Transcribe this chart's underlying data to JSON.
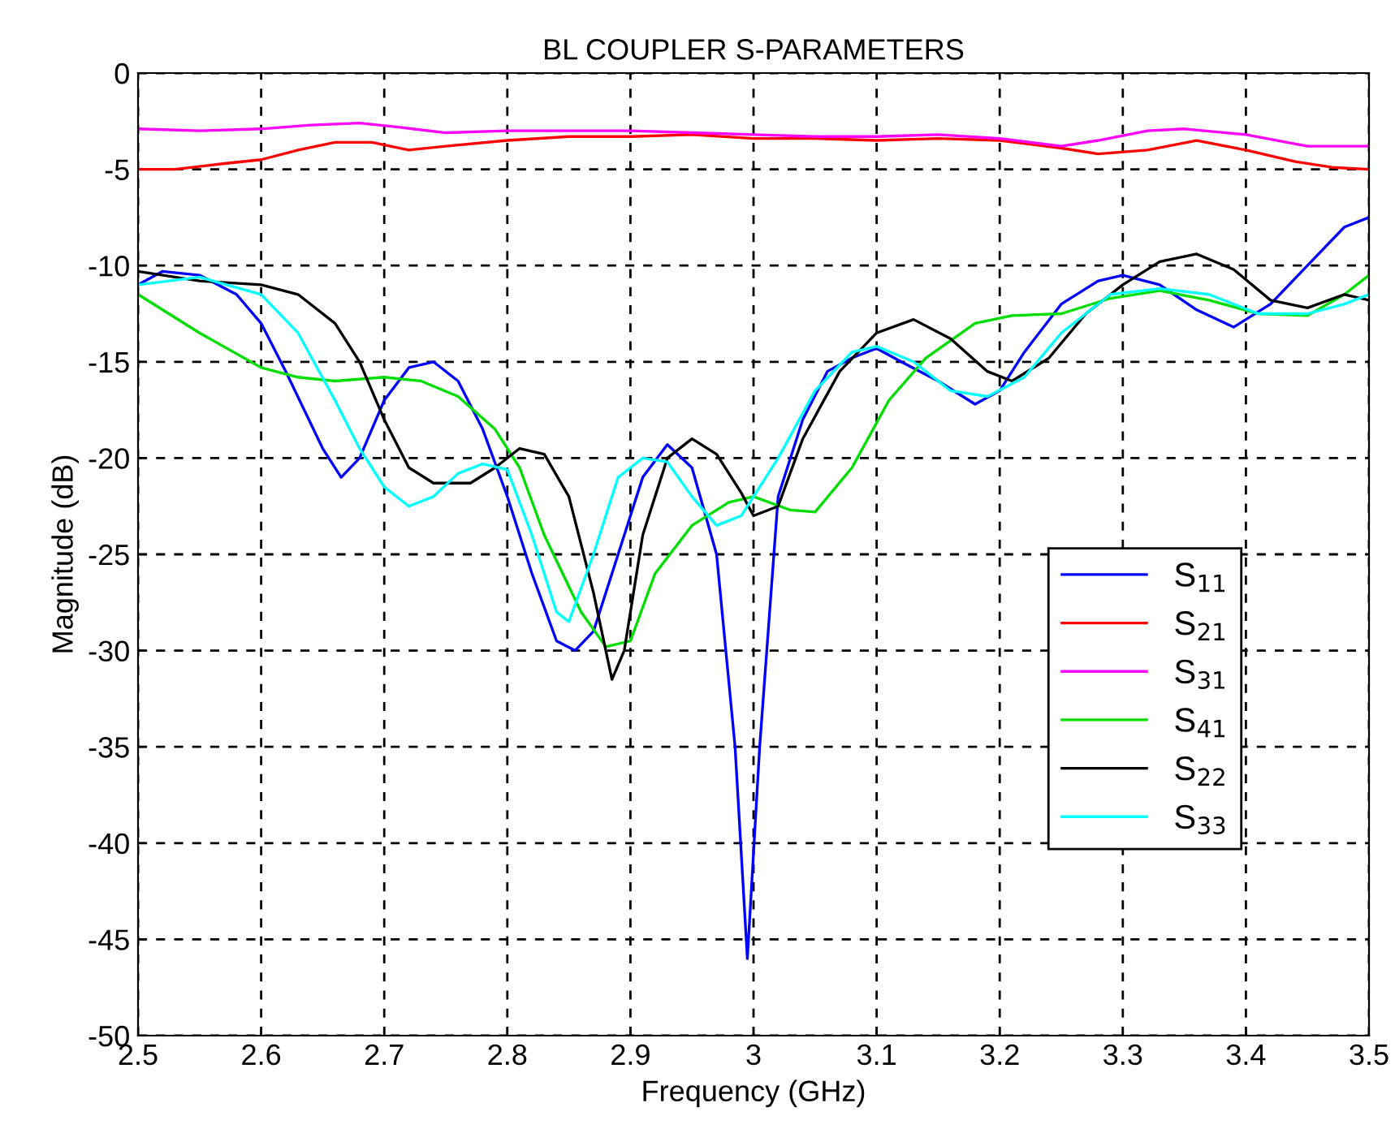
{
  "chart_data": {
    "type": "line",
    "title": "BL COUPLER S-PARAMETERS",
    "xlabel": "Frequency (GHz)",
    "ylabel": "Magnitude (dB)",
    "xlim": [
      2.5,
      3.5
    ],
    "xticks": [
      2.5,
      2.6,
      2.7,
      2.8,
      2.9,
      3,
      3.1,
      3.2,
      3.3,
      3.4,
      3.5
    ],
    "ylim": [
      -50,
      0
    ],
    "yticks": [
      -50,
      -45,
      -40,
      -35,
      -30,
      -25,
      -20,
      -15,
      -10,
      -5,
      0
    ],
    "grid": true,
    "legend": "right",
    "line_style": "solid",
    "marker": "none",
    "series": [
      {
        "name": "S$_{11}$",
        "color": "#0000ff",
        "x": [
          2.5,
          2.52,
          2.55,
          2.58,
          2.6,
          2.62,
          2.65,
          2.665,
          2.68,
          2.7,
          2.72,
          2.74,
          2.76,
          2.78,
          2.8,
          2.82,
          2.84,
          2.855,
          2.87,
          2.89,
          2.91,
          2.93,
          2.95,
          2.97,
          2.985,
          2.995,
          3.005,
          3.02,
          3.04,
          3.06,
          3.08,
          3.1,
          3.12,
          3.15,
          3.18,
          3.2,
          3.22,
          3.25,
          3.28,
          3.3,
          3.33,
          3.36,
          3.39,
          3.42,
          3.45,
          3.48,
          3.5
        ],
        "values": [
          -11,
          -10.3,
          -10.5,
          -11.5,
          -13,
          -15.5,
          -19.5,
          -21,
          -20,
          -17,
          -15.3,
          -15,
          -16,
          -18.5,
          -22,
          -26,
          -29.5,
          -30,
          -29,
          -25,
          -21,
          -19.3,
          -20.5,
          -25,
          -35,
          -46,
          -35,
          -22,
          -18,
          -15.5,
          -14.8,
          -14.3,
          -15,
          -16,
          -17.2,
          -16.5,
          -14.5,
          -12,
          -10.8,
          -10.5,
          -11,
          -12.3,
          -13.2,
          -12,
          -10,
          -8,
          -7.5
        ]
      },
      {
        "name": "S$_{21}$",
        "color": "#ff0000",
        "x": [
          2.5,
          2.53,
          2.57,
          2.6,
          2.63,
          2.66,
          2.69,
          2.72,
          2.75,
          2.8,
          2.85,
          2.9,
          2.95,
          3.0,
          3.05,
          3.1,
          3.15,
          3.2,
          3.25,
          3.28,
          3.32,
          3.36,
          3.4,
          3.44,
          3.47,
          3.5
        ],
        "values": [
          -5,
          -5,
          -4.7,
          -4.5,
          -4,
          -3.6,
          -3.6,
          -4,
          -3.8,
          -3.5,
          -3.3,
          -3.3,
          -3.2,
          -3.4,
          -3.4,
          -3.5,
          -3.4,
          -3.5,
          -3.9,
          -4.2,
          -4,
          -3.5,
          -4,
          -4.6,
          -4.9,
          -5
        ]
      },
      {
        "name": "S$_{31}$",
        "color": "#ff00ff",
        "x": [
          2.5,
          2.55,
          2.6,
          2.64,
          2.68,
          2.71,
          2.75,
          2.8,
          2.85,
          2.9,
          2.95,
          3.0,
          3.05,
          3.1,
          3.15,
          3.2,
          3.25,
          3.28,
          3.32,
          3.35,
          3.4,
          3.45,
          3.5
        ],
        "values": [
          -2.9,
          -3.0,
          -2.9,
          -2.7,
          -2.6,
          -2.8,
          -3.1,
          -3.0,
          -3.0,
          -3.0,
          -3.1,
          -3.2,
          -3.3,
          -3.3,
          -3.2,
          -3.4,
          -3.8,
          -3.5,
          -3.0,
          -2.9,
          -3.2,
          -3.8,
          -3.8
        ]
      },
      {
        "name": "S$_{41}$",
        "color": "#00dd00",
        "x": [
          2.5,
          2.55,
          2.6,
          2.63,
          2.66,
          2.7,
          2.73,
          2.76,
          2.79,
          2.81,
          2.83,
          2.86,
          2.88,
          2.9,
          2.92,
          2.95,
          2.98,
          3.0,
          3.03,
          3.05,
          3.08,
          3.11,
          3.14,
          3.18,
          3.21,
          3.25,
          3.29,
          3.33,
          3.37,
          3.41,
          3.45,
          3.48,
          3.5
        ],
        "values": [
          -11.5,
          -13.5,
          -15.3,
          -15.8,
          -16,
          -15.8,
          -16,
          -16.8,
          -18.5,
          -20.5,
          -24,
          -28,
          -29.8,
          -29.5,
          -26,
          -23.5,
          -22.3,
          -22,
          -22.7,
          -22.8,
          -20.5,
          -17,
          -14.8,
          -13,
          -12.6,
          -12.5,
          -11.7,
          -11.3,
          -11.8,
          -12.5,
          -12.6,
          -11.5,
          -10.5
        ]
      },
      {
        "name": "S$_{22}$",
        "color": "#000000",
        "x": [
          2.5,
          2.55,
          2.6,
          2.63,
          2.66,
          2.68,
          2.7,
          2.72,
          2.74,
          2.77,
          2.79,
          2.81,
          2.83,
          2.85,
          2.87,
          2.885,
          2.895,
          2.91,
          2.93,
          2.95,
          2.97,
          2.99,
          3.0,
          3.02,
          3.04,
          3.07,
          3.1,
          3.13,
          3.16,
          3.19,
          3.21,
          3.24,
          3.27,
          3.3,
          3.33,
          3.36,
          3.39,
          3.42,
          3.45,
          3.48,
          3.5
        ],
        "values": [
          -10.3,
          -10.8,
          -11,
          -11.5,
          -13,
          -15,
          -18,
          -20.5,
          -21.3,
          -21.3,
          -20.5,
          -19.5,
          -19.8,
          -22,
          -27,
          -31.5,
          -30,
          -24,
          -20,
          -19,
          -19.8,
          -21.8,
          -23,
          -22.5,
          -19,
          -15.5,
          -13.5,
          -12.8,
          -13.8,
          -15.5,
          -16,
          -14.8,
          -12.5,
          -11,
          -9.8,
          -9.4,
          -10.2,
          -11.8,
          -12.2,
          -11.5,
          -11.8
        ]
      },
      {
        "name": "S$_{33}$",
        "color": "#00ffff",
        "x": [
          2.5,
          2.55,
          2.6,
          2.63,
          2.66,
          2.68,
          2.7,
          2.72,
          2.74,
          2.76,
          2.78,
          2.8,
          2.82,
          2.84,
          2.85,
          2.87,
          2.89,
          2.91,
          2.93,
          2.95,
          2.97,
          2.99,
          3.02,
          3.05,
          3.08,
          3.1,
          3.13,
          3.16,
          3.19,
          3.22,
          3.25,
          3.29,
          3.33,
          3.37,
          3.41,
          3.45,
          3.48,
          3.5
        ],
        "values": [
          -11,
          -10.6,
          -11.5,
          -13.5,
          -17,
          -19.5,
          -21.5,
          -22.5,
          -22,
          -20.8,
          -20.3,
          -20.6,
          -24,
          -28,
          -28.5,
          -25,
          -21,
          -20,
          -20.2,
          -22,
          -23.5,
          -23,
          -20,
          -16.5,
          -14.5,
          -14.2,
          -15,
          -16.5,
          -16.8,
          -15.8,
          -13.5,
          -11.5,
          -11.2,
          -11.5,
          -12.5,
          -12.5,
          -12,
          -11.5
        ]
      }
    ]
  }
}
